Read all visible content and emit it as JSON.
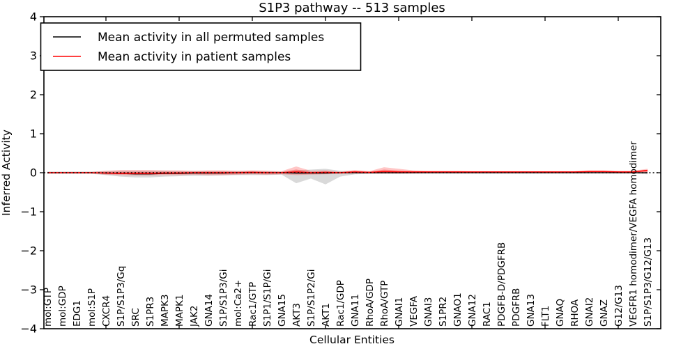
{
  "figure": {
    "title": "S1P3 pathway -- 513 samples",
    "xlabel": "Cellular Entities",
    "ylabel": "Inferred Activity"
  },
  "legend": {
    "position": "upper left",
    "entries": [
      {
        "label": "Mean activity in all permuted samples",
        "color": "#000000"
      },
      {
        "label": "Mean activity in patient samples",
        "color": "#ff0000"
      }
    ]
  },
  "chart_data": {
    "type": "line",
    "title": "S1P3 pathway -- 513 samples",
    "xlabel": "Cellular Entities",
    "ylabel": "Inferred Activity",
    "ylim": [
      -4,
      4
    ],
    "yticks": [
      -4,
      -3,
      -2,
      -1,
      0,
      1,
      2,
      3,
      4
    ],
    "xticks": [
      5,
      10,
      15,
      20,
      25,
      30,
      35,
      40
    ],
    "grid": false,
    "legend_position": "upper left",
    "zero_line": {
      "y": 0,
      "style": "dotted",
      "color": "#000000"
    },
    "categories": [
      "mol:GTP",
      "mol:GDP",
      "EDG1",
      "mol:S1P",
      "CXCR4",
      "S1P/S1P3/Gq",
      "SRC",
      "S1PR3",
      "MAPK3",
      "MAPK1",
      "JAK2",
      "GNA14",
      "S1P/S1P3/Gi",
      "mol:Ca2+",
      "Rac1/GTP",
      "S1P1/S1P/Gi",
      "GNA15",
      "AKT3",
      "S1P/S1P2/Gi",
      "AKT1",
      "Rac1/GDP",
      "GNA11",
      "RhoA/GDP",
      "RhoA/GTP",
      "GNAI1",
      "VEGFA",
      "GNAI3",
      "S1PR2",
      "GNAO1",
      "GNA12",
      "RAC1",
      "PDGFB-D/PDGFRB",
      "PDGFRB",
      "GNA13",
      "FLT1",
      "GNAQ",
      "RHOA",
      "GNAI2",
      "GNAZ",
      "G12/G13",
      "VEGFR1 homodimer/VEGFA homodimer",
      "S1P/S1P3/G12/G13"
    ],
    "series": [
      {
        "name": "Mean activity in all permuted samples",
        "color": "#000000",
        "band_color": "#888888",
        "values": [
          0,
          0,
          0,
          0,
          -0.01,
          -0.02,
          -0.03,
          -0.03,
          -0.02,
          -0.02,
          -0.01,
          -0.01,
          -0.01,
          0,
          0,
          0,
          0,
          -0.01,
          -0.01,
          -0.01,
          0,
          0,
          0,
          0,
          0,
          0,
          0,
          0,
          0,
          0,
          0,
          0,
          0,
          0,
          0,
          0,
          0,
          0,
          0,
          0,
          0,
          0
        ],
        "band_upper": [
          0.03,
          0.03,
          0.03,
          0.03,
          0.04,
          0.05,
          0.05,
          0.05,
          0.05,
          0.04,
          0.04,
          0.04,
          0.04,
          0.04,
          0.04,
          0.04,
          0.03,
          0.06,
          0.08,
          0.1,
          0.05,
          0.03,
          0.03,
          0.03,
          0.03,
          0.02,
          0.02,
          0.02,
          0.02,
          0.02,
          0.02,
          0.02,
          0.02,
          0.02,
          0.02,
          0.02,
          0.02,
          0.02,
          0.02,
          0.02,
          0.02,
          0.03
        ],
        "band_lower": [
          -0.03,
          -0.03,
          -0.03,
          -0.03,
          -0.06,
          -0.1,
          -0.12,
          -0.12,
          -0.1,
          -0.09,
          -0.08,
          -0.08,
          -0.07,
          -0.06,
          -0.06,
          -0.06,
          -0.05,
          -0.27,
          -0.15,
          -0.3,
          -0.1,
          -0.04,
          -0.03,
          -0.03,
          -0.03,
          -0.02,
          -0.02,
          -0.02,
          -0.02,
          -0.02,
          -0.02,
          -0.02,
          -0.02,
          -0.02,
          -0.02,
          -0.02,
          -0.02,
          -0.02,
          -0.02,
          -0.02,
          -0.02,
          -0.04
        ]
      },
      {
        "name": "Mean activity in patient samples",
        "color": "#ff0000",
        "band_color": "#ff0000",
        "values": [
          0,
          0,
          0,
          0,
          -0.01,
          -0.02,
          -0.02,
          -0.02,
          -0.01,
          -0.01,
          0,
          0,
          0,
          0,
          0.01,
          0,
          0,
          0.02,
          0,
          0.01,
          0,
          0.02,
          0.01,
          0.03,
          0.02,
          0.02,
          0.02,
          0.02,
          0.02,
          0.02,
          0.02,
          0.02,
          0.02,
          0.02,
          0.02,
          0.02,
          0.02,
          0.03,
          0.03,
          0.02,
          0.02,
          0.06
        ],
        "band_upper": [
          0.02,
          0.02,
          0.02,
          0.02,
          0.05,
          0.07,
          0.07,
          0.07,
          0.06,
          0.06,
          0.05,
          0.06,
          0.06,
          0.05,
          0.06,
          0.05,
          0.04,
          0.16,
          0.05,
          0.06,
          0.03,
          0.07,
          0.04,
          0.14,
          0.1,
          0.06,
          0.05,
          0.05,
          0.05,
          0.04,
          0.04,
          0.04,
          0.04,
          0.04,
          0.04,
          0.04,
          0.04,
          0.06,
          0.06,
          0.05,
          0.05,
          0.1
        ],
        "band_lower": [
          -0.02,
          -0.02,
          -0.02,
          -0.02,
          -0.05,
          -0.06,
          -0.07,
          -0.07,
          -0.06,
          -0.06,
          -0.05,
          -0.06,
          -0.06,
          -0.05,
          -0.04,
          -0.05,
          -0.04,
          -0.06,
          -0.05,
          -0.04,
          -0.03,
          -0.02,
          -0.02,
          -0.02,
          -0.02,
          -0.02,
          -0.01,
          -0.01,
          -0.01,
          -0.01,
          -0.01,
          -0.01,
          -0.01,
          -0.01,
          -0.01,
          -0.01,
          -0.01,
          -0.01,
          -0.01,
          -0.01,
          -0.01,
          -0.02
        ]
      }
    ]
  }
}
